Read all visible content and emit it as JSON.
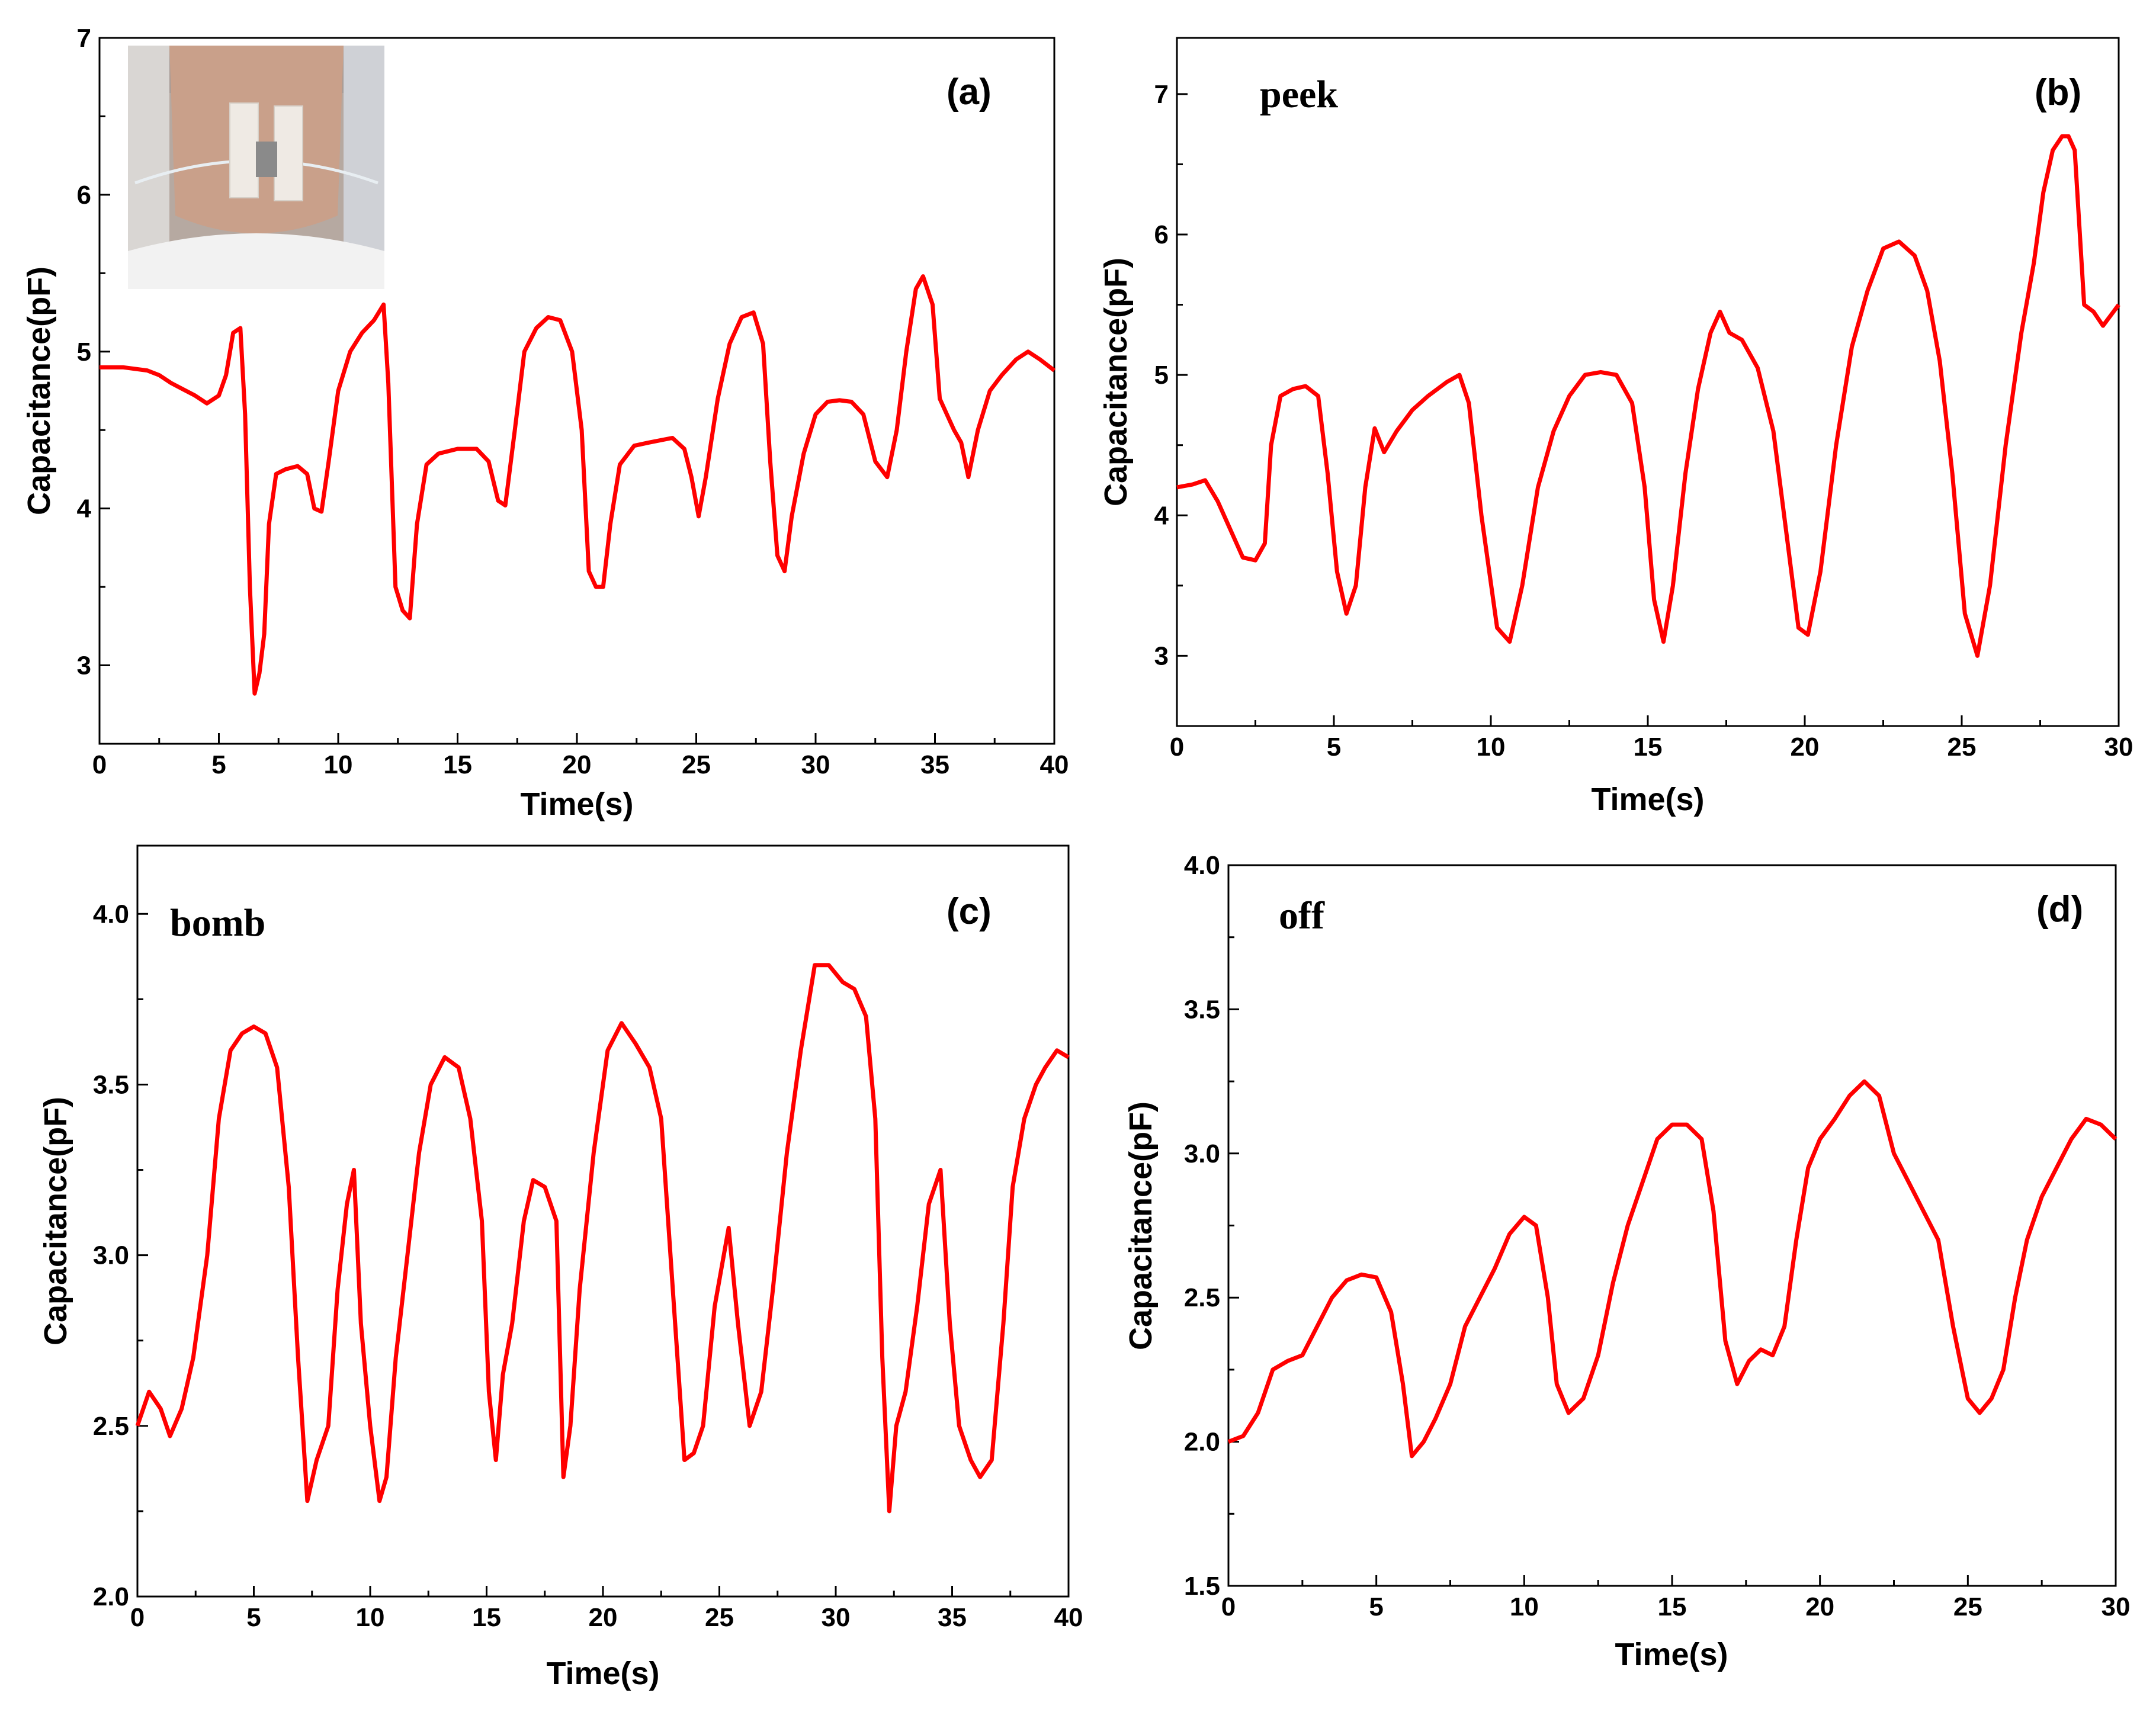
{
  "chart_data": [
    {
      "type": "line",
      "panel": "(a)",
      "annotation": "",
      "xlabel": "Time(s)",
      "ylabel": "Capacitance(pF)",
      "xlim": [
        0,
        40
      ],
      "ylim": [
        2.5,
        7
      ],
      "xticks": [
        0,
        5,
        10,
        15,
        20,
        25,
        30,
        35,
        40
      ],
      "yticks": [
        3,
        4,
        5,
        6,
        7
      ],
      "ytick_labels": [
        "3",
        "4",
        "5",
        "6",
        "7"
      ],
      "color": "#ff0000",
      "inset": "photo of neck with sensor attached",
      "series": [
        {
          "name": "capacitance",
          "x": [
            0,
            1,
            2,
            2.5,
            3,
            3.5,
            4,
            4.5,
            5,
            5.3,
            5.6,
            5.9,
            6.1,
            6.3,
            6.5,
            6.7,
            6.9,
            7.1,
            7.4,
            7.8,
            8.3,
            8.7,
            9,
            9.3,
            9.6,
            10,
            10.5,
            11,
            11.5,
            11.9,
            12.1,
            12.4,
            12.7,
            13,
            13.3,
            13.7,
            14.2,
            15,
            15.8,
            16.3,
            16.7,
            17,
            17.4,
            17.8,
            18.3,
            18.8,
            19.3,
            19.8,
            20.2,
            20.5,
            20.8,
            21.1,
            21.4,
            21.8,
            22.4,
            23,
            24,
            24.5,
            24.8,
            25.1,
            25.4,
            25.9,
            26.4,
            26.9,
            27.4,
            27.8,
            28.1,
            28.4,
            28.7,
            29,
            29.5,
            30,
            30.5,
            31,
            31.5,
            32,
            32.5,
            33,
            33.4,
            33.8,
            34.2,
            34.5,
            34.9,
            35.2,
            35.5,
            35.8,
            36.1,
            36.4,
            36.8,
            37.3,
            37.8,
            38.4,
            38.9,
            39.4,
            40
          ],
          "values": [
            4.9,
            4.9,
            4.88,
            4.85,
            4.8,
            4.76,
            4.72,
            4.67,
            4.72,
            4.85,
            5.12,
            5.15,
            4.6,
            3.5,
            2.82,
            2.95,
            3.2,
            3.9,
            4.22,
            4.25,
            4.27,
            4.22,
            4.0,
            3.98,
            4.3,
            4.75,
            5.0,
            5.12,
            5.2,
            5.3,
            4.8,
            3.5,
            3.35,
            3.3,
            3.9,
            4.28,
            4.35,
            4.38,
            4.38,
            4.3,
            4.05,
            4.02,
            4.5,
            5.0,
            5.15,
            5.22,
            5.2,
            5.0,
            4.5,
            3.6,
            3.5,
            3.5,
            3.9,
            4.28,
            4.4,
            4.42,
            4.45,
            4.38,
            4.2,
            3.95,
            4.2,
            4.7,
            5.05,
            5.22,
            5.25,
            5.05,
            4.3,
            3.7,
            3.6,
            3.95,
            4.35,
            4.6,
            4.68,
            4.69,
            4.68,
            4.6,
            4.3,
            4.2,
            4.5,
            5.0,
            5.4,
            5.48,
            5.3,
            4.7,
            4.6,
            4.5,
            4.42,
            4.2,
            4.5,
            4.75,
            4.85,
            4.95,
            5.0,
            4.95,
            4.88
          ]
        }
      ]
    },
    {
      "type": "line",
      "panel": "(b)",
      "annotation": "peek",
      "xlabel": "Time(s)",
      "ylabel": "Capacitance(pF)",
      "xlim": [
        0,
        30
      ],
      "ylim": [
        2.5,
        7.4
      ],
      "xticks": [
        0,
        5,
        10,
        15,
        20,
        25,
        30
      ],
      "yticks": [
        3,
        4,
        5,
        6,
        7
      ],
      "ytick_labels": [
        "3",
        "4",
        "5",
        "6",
        "7"
      ],
      "color": "#ff0000",
      "series": [
        {
          "name": "capacitance",
          "x": [
            0,
            0.5,
            0.9,
            1.3,
            1.7,
            2.1,
            2.5,
            2.8,
            3,
            3.3,
            3.7,
            4.1,
            4.5,
            4.8,
            5.1,
            5.4,
            5.7,
            6,
            6.3,
            6.6,
            7,
            7.5,
            8,
            8.6,
            9,
            9.3,
            9.7,
            10.2,
            10.6,
            11,
            11.5,
            12,
            12.5,
            13,
            13.5,
            14,
            14.5,
            14.9,
            15.2,
            15.5,
            15.8,
            16.2,
            16.6,
            17,
            17.3,
            17.6,
            18,
            18.5,
            19,
            19.4,
            19.8,
            20.1,
            20.5,
            21,
            21.5,
            22,
            22.5,
            23,
            23.5,
            23.9,
            24.3,
            24.7,
            25.1,
            25.5,
            25.9,
            26.4,
            26.9,
            27.3,
            27.6,
            27.9,
            28.2,
            28.4,
            28.6,
            28.9,
            29.2,
            29.5,
            30
          ],
          "values": [
            4.2,
            4.22,
            4.25,
            4.1,
            3.9,
            3.7,
            3.68,
            3.8,
            4.5,
            4.85,
            4.9,
            4.92,
            4.85,
            4.3,
            3.6,
            3.3,
            3.5,
            4.2,
            4.62,
            4.45,
            4.6,
            4.75,
            4.85,
            4.95,
            5.0,
            4.8,
            4.0,
            3.2,
            3.1,
            3.5,
            4.2,
            4.6,
            4.85,
            5.0,
            5.02,
            5.0,
            4.8,
            4.2,
            3.4,
            3.1,
            3.5,
            4.3,
            4.9,
            5.3,
            5.45,
            5.3,
            5.25,
            5.05,
            4.6,
            3.9,
            3.2,
            3.15,
            3.6,
            4.5,
            5.2,
            5.6,
            5.9,
            5.95,
            5.85,
            5.6,
            5.1,
            4.3,
            3.3,
            3.0,
            3.5,
            4.5,
            5.3,
            5.8,
            6.3,
            6.6,
            6.7,
            6.7,
            6.6,
            5.5,
            5.45,
            5.35,
            5.5
          ]
        }
      ]
    },
    {
      "type": "line",
      "panel": "(c)",
      "annotation": "bomb",
      "xlabel": "Time(s)",
      "ylabel": "Capacitance(pF)",
      "xlim": [
        0,
        40
      ],
      "ylim": [
        2.0,
        4.2
      ],
      "xticks": [
        0,
        5,
        10,
        15,
        20,
        25,
        30,
        35,
        40
      ],
      "yticks": [
        2.0,
        2.5,
        3.0,
        3.5,
        4.0
      ],
      "ytick_labels": [
        "2.0",
        "2.5",
        "3.0",
        "3.5",
        "4.0"
      ],
      "color": "#ff0000",
      "series": [
        {
          "name": "capacitance",
          "x": [
            0,
            0.5,
            1,
            1.4,
            1.9,
            2.4,
            3,
            3.5,
            4,
            4.5,
            5,
            5.5,
            6,
            6.5,
            6.9,
            7.3,
            7.7,
            8.2,
            8.6,
            9,
            9.3,
            9.6,
            10,
            10.4,
            10.7,
            11.1,
            11.6,
            12.1,
            12.6,
            13.2,
            13.8,
            14.3,
            14.8,
            15.1,
            15.4,
            15.7,
            16.1,
            16.6,
            17,
            17.5,
            18,
            18.3,
            18.6,
            19,
            19.6,
            20.2,
            20.8,
            21.4,
            22,
            22.5,
            23,
            23.5,
            23.9,
            24.3,
            24.8,
            25.4,
            25.8,
            26.3,
            26.8,
            27.3,
            27.9,
            28.5,
            29.1,
            29.7,
            30.3,
            30.8,
            31.3,
            31.7,
            32,
            32.3,
            32.6,
            33,
            33.5,
            34,
            34.5,
            34.9,
            35.3,
            35.8,
            36.2,
            36.7,
            37.2,
            37.6,
            38.1,
            38.6,
            39,
            39.5,
            40
          ],
          "values": [
            2.5,
            2.6,
            2.55,
            2.47,
            2.55,
            2.7,
            3.0,
            3.4,
            3.6,
            3.65,
            3.67,
            3.65,
            3.55,
            3.2,
            2.7,
            2.28,
            2.4,
            2.5,
            2.9,
            3.15,
            3.25,
            2.8,
            2.5,
            2.28,
            2.35,
            2.7,
            3.0,
            3.3,
            3.5,
            3.58,
            3.55,
            3.4,
            3.1,
            2.6,
            2.4,
            2.65,
            2.8,
            3.1,
            3.22,
            3.2,
            3.1,
            2.35,
            2.5,
            2.9,
            3.3,
            3.6,
            3.68,
            3.62,
            3.55,
            3.4,
            2.9,
            2.4,
            2.42,
            2.5,
            2.85,
            3.08,
            2.8,
            2.5,
            2.6,
            2.9,
            3.3,
            3.6,
            3.85,
            3.85,
            3.8,
            3.78,
            3.7,
            3.4,
            2.7,
            2.25,
            2.5,
            2.6,
            2.85,
            3.15,
            3.25,
            2.8,
            2.5,
            2.4,
            2.35,
            2.4,
            2.8,
            3.2,
            3.4,
            3.5,
            3.55,
            3.6,
            3.58
          ]
        }
      ]
    },
    {
      "type": "line",
      "panel": "(d)",
      "annotation": "off",
      "xlabel": "Time(s)",
      "ylabel": "Capacitance(pF)",
      "xlim": [
        0,
        30
      ],
      "ylim": [
        1.5,
        4.0
      ],
      "xticks": [
        0,
        5,
        10,
        15,
        20,
        25,
        30
      ],
      "yticks": [
        1.5,
        2.0,
        2.5,
        3.0,
        3.5,
        4.0
      ],
      "ytick_labels": [
        "1.5",
        "2.0",
        "2.5",
        "3.0",
        "3.5",
        "4.0"
      ],
      "color": "#ff0000",
      "series": [
        {
          "name": "capacitance",
          "x": [
            0,
            0.5,
            1,
            1.5,
            2,
            2.5,
            3,
            3.5,
            4,
            4.5,
            5,
            5.5,
            5.9,
            6.2,
            6.6,
            7,
            7.5,
            8,
            8.5,
            9,
            9.5,
            10,
            10.4,
            10.8,
            11.1,
            11.5,
            12,
            12.5,
            13,
            13.5,
            14,
            14.5,
            15,
            15.5,
            16,
            16.4,
            16.8,
            17.2,
            17.6,
            18,
            18.4,
            18.8,
            19.2,
            19.6,
            20,
            20.5,
            21,
            21.5,
            22,
            22.5,
            23,
            23.5,
            24,
            24.5,
            25,
            25.4,
            25.8,
            26.2,
            26.6,
            27,
            27.5,
            28,
            28.5,
            29,
            29.5,
            30
          ],
          "values": [
            2.0,
            2.02,
            2.1,
            2.25,
            2.28,
            2.3,
            2.4,
            2.5,
            2.56,
            2.58,
            2.57,
            2.45,
            2.2,
            1.95,
            2.0,
            2.08,
            2.2,
            2.4,
            2.5,
            2.6,
            2.72,
            2.78,
            2.75,
            2.5,
            2.2,
            2.1,
            2.15,
            2.3,
            2.55,
            2.75,
            2.9,
            3.05,
            3.1,
            3.1,
            3.05,
            2.8,
            2.35,
            2.2,
            2.28,
            2.32,
            2.3,
            2.4,
            2.7,
            2.95,
            3.05,
            3.12,
            3.2,
            3.25,
            3.2,
            3.0,
            2.9,
            2.8,
            2.7,
            2.4,
            2.15,
            2.1,
            2.15,
            2.25,
            2.5,
            2.7,
            2.85,
            2.95,
            3.05,
            3.12,
            3.1,
            3.05
          ]
        }
      ]
    }
  ]
}
